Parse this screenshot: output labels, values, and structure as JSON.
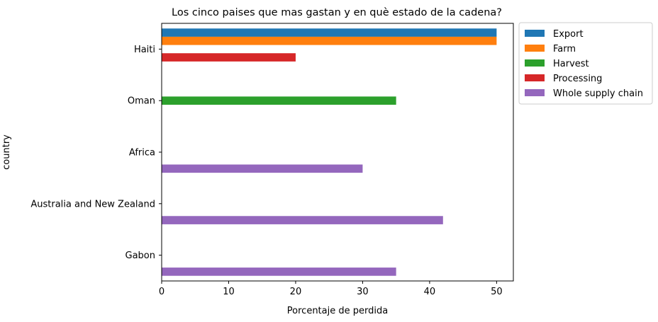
{
  "chart_data": {
    "type": "bar",
    "orientation": "horizontal",
    "title": "Los cinco paises que mas gastan y en què estado de la cadena?",
    "xlabel": "Porcentaje de perdida",
    "ylabel": "country",
    "xlim": [
      0,
      52.5
    ],
    "xticks": [
      0,
      10,
      20,
      30,
      40,
      50
    ],
    "grid": false,
    "legend_position": "outside-top-right",
    "categories": [
      "Haiti",
      "Oman",
      "Africa",
      "Australia and New Zealand",
      "Gabon"
    ],
    "series": [
      {
        "name": "Export",
        "color": "#1f77b4",
        "values": [
          50,
          null,
          null,
          null,
          null
        ]
      },
      {
        "name": "Farm",
        "color": "#ff7f0e",
        "values": [
          50,
          null,
          null,
          null,
          null
        ]
      },
      {
        "name": "Harvest",
        "color": "#2ca02c",
        "values": [
          null,
          35,
          null,
          null,
          null
        ]
      },
      {
        "name": "Processing",
        "color": "#d62728",
        "values": [
          20,
          null,
          null,
          null,
          null
        ]
      },
      {
        "name": "Whole supply chain",
        "color": "#9467bd",
        "values": [
          null,
          null,
          30,
          42,
          35
        ]
      }
    ]
  }
}
